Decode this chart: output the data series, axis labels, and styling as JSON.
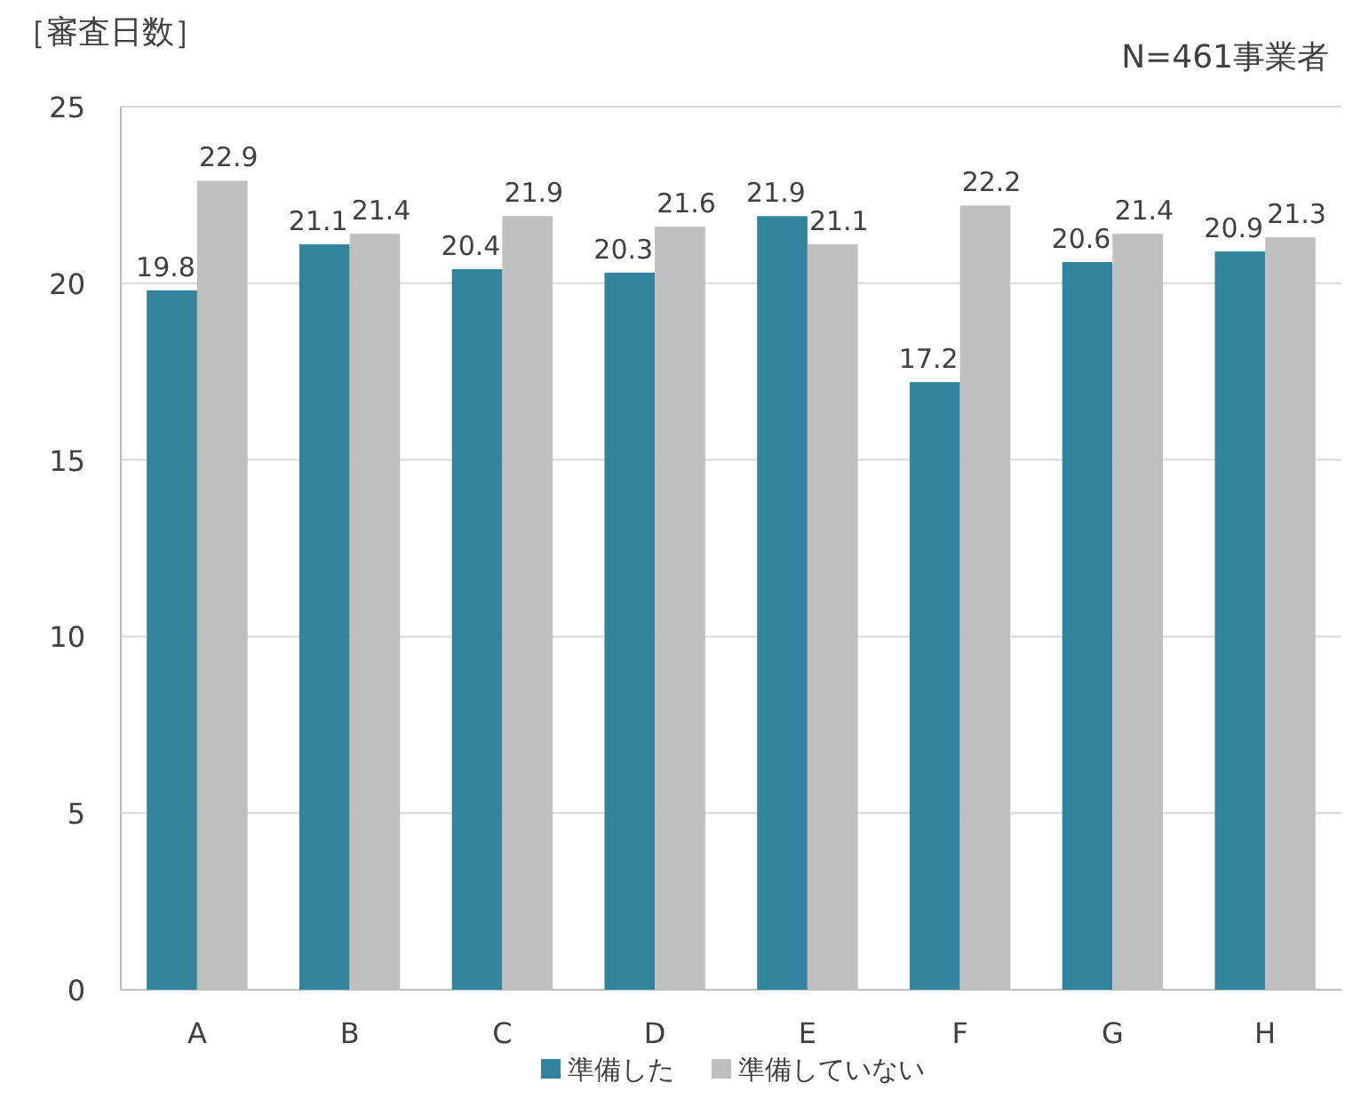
{
  "chart_data": {
    "type": "bar",
    "ylabel": "［審査日数］",
    "annotations": [
      "N=461事業者"
    ],
    "categories": [
      "A",
      "B",
      "C",
      "D",
      "E",
      "F",
      "G",
      "H"
    ],
    "series": [
      {
        "name": "準備した",
        "color": "#31849b",
        "values": [
          19.8,
          21.1,
          20.4,
          20.3,
          21.9,
          17.2,
          20.6,
          20.9
        ]
      },
      {
        "name": "準備していない",
        "color": "#bfbfbf",
        "values": [
          22.9,
          21.4,
          21.9,
          21.6,
          21.1,
          22.2,
          21.4,
          21.3
        ]
      }
    ],
    "ylim": [
      0,
      25
    ],
    "yticks": [
      0,
      5,
      10,
      15,
      20,
      25
    ],
    "grid": "y",
    "legend": "bottom",
    "data_labels": true
  }
}
